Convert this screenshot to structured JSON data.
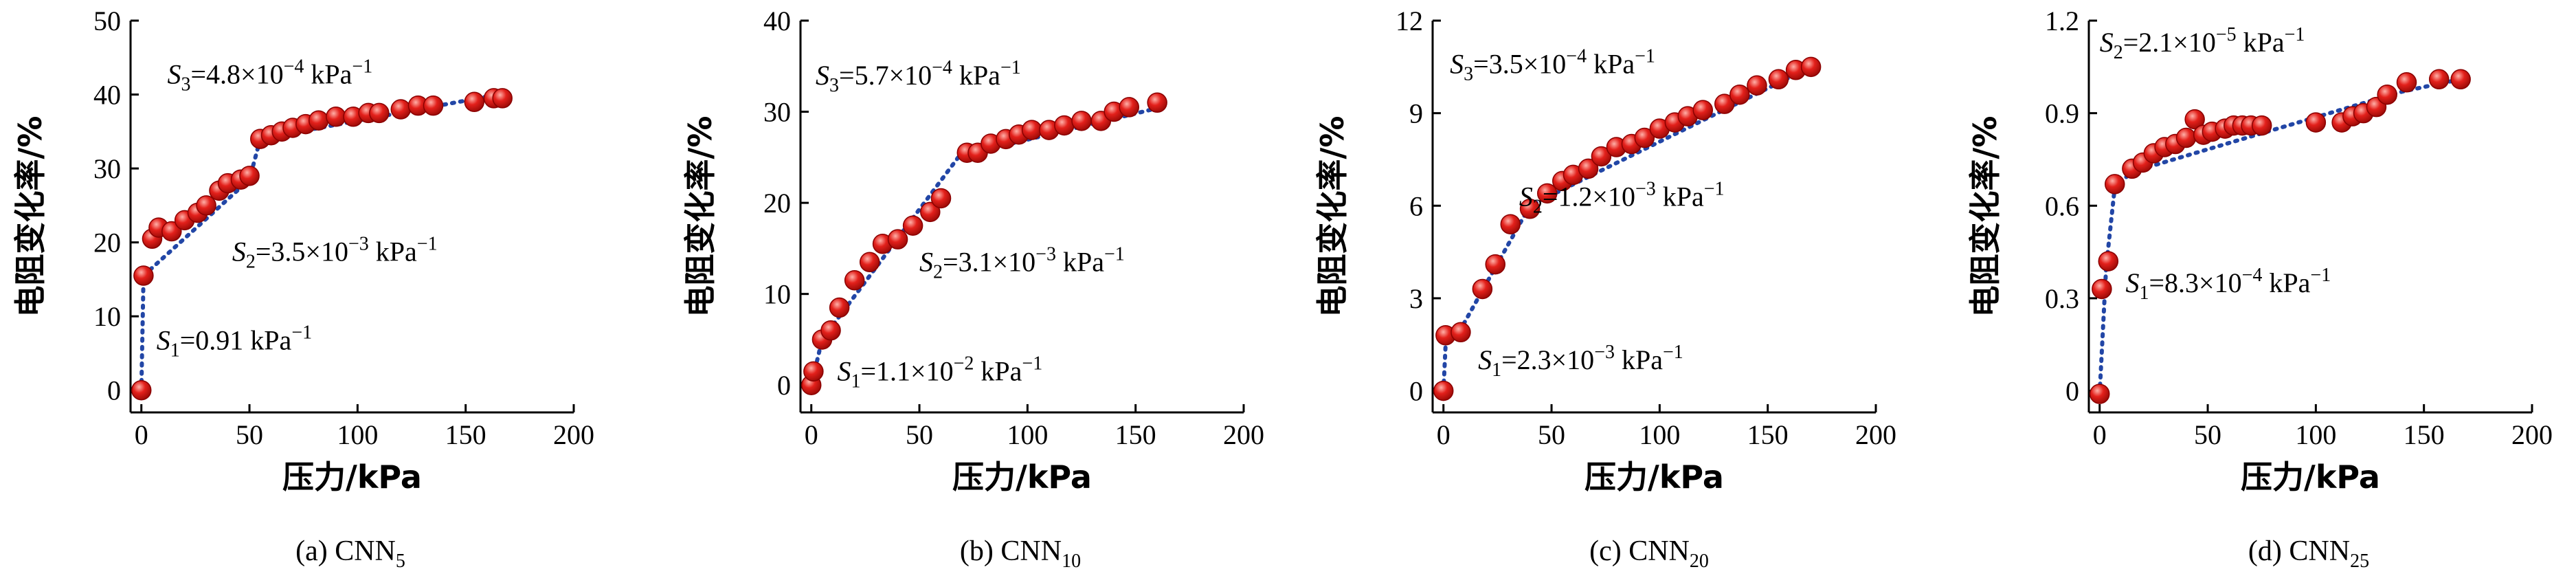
{
  "chart_data": [
    {
      "type": "scatter",
      "panel": "(a)",
      "caption_prefix": "(a) CNN",
      "caption_sub": "5",
      "xlabel": "压力/kPa",
      "ylabel": "电阻变化率/%",
      "xlim": [
        -5,
        200
      ],
      "ylim": [
        -3,
        50
      ],
      "xticks": [
        0,
        50,
        100,
        150,
        200
      ],
      "yticks": [
        0,
        10,
        20,
        30,
        40,
        50
      ],
      "xticklabels": [
        "0",
        "50",
        "100",
        "150",
        "200"
      ],
      "yticklabels": [
        "0",
        "10",
        "20",
        "30",
        "40",
        "50"
      ],
      "series": [
        {
          "name": "data",
          "x": [
            0,
            1,
            5,
            8,
            14,
            20,
            26,
            30,
            36,
            40,
            46,
            50,
            55,
            60,
            65,
            70,
            76,
            82,
            90,
            98,
            105,
            110,
            120,
            128,
            135,
            154,
            163,
            167
          ],
          "y": [
            0,
            15.5,
            20.5,
            22,
            21.5,
            23,
            24,
            25,
            27,
            28,
            28.5,
            29,
            34,
            34.5,
            35,
            35.5,
            36,
            36.5,
            37,
            37,
            37.5,
            37.5,
            38,
            38.5,
            38.5,
            39,
            39.5,
            39.5
          ]
        }
      ],
      "fit": {
        "x": [
          0,
          1,
          50,
          55,
          165
        ],
        "y": [
          0,
          15.5,
          28.5,
          34,
          40
        ]
      },
      "annotations": [
        {
          "sym": "S",
          "sub": "3",
          "text": "=4.8×10",
          "exp": "−4",
          "unit": " kPa",
          "unit_exp": "−1"
        },
        {
          "sym": "S",
          "sub": "2",
          "text": "=3.5×10",
          "exp": "−3",
          "unit": " kPa",
          "unit_exp": "−1"
        },
        {
          "sym": "S",
          "sub": "1",
          "text": "=0.91 kPa",
          "exp": "",
          "unit": "",
          "unit_exp": "−1"
        }
      ]
    },
    {
      "type": "scatter",
      "panel": "(b)",
      "caption_prefix": "(b) CNN",
      "caption_sub": "10",
      "xlabel": "压力/kPa",
      "ylabel": "电阻变化率/%",
      "xlim": [
        -5,
        200
      ],
      "ylim": [
        -3,
        40
      ],
      "xticks": [
        0,
        50,
        100,
        150,
        200
      ],
      "yticks": [
        0,
        10,
        20,
        30,
        40
      ],
      "xticklabels": [
        "0",
        "50",
        "100",
        "150",
        "200"
      ],
      "yticklabels": [
        "0",
        "10",
        "20",
        "30",
        "40"
      ],
      "series": [
        {
          "name": "data",
          "x": [
            0,
            1,
            5,
            9,
            13,
            20,
            27,
            33,
            40,
            47,
            55,
            60,
            72,
            77,
            83,
            90,
            96,
            102,
            110,
            117,
            125,
            134,
            140,
            147,
            160
          ],
          "y": [
            0,
            1.5,
            5,
            6,
            8.5,
            11.5,
            13.5,
            15.5,
            16,
            17.5,
            19,
            20.5,
            25.5,
            25.5,
            26.5,
            27,
            27.5,
            28,
            28,
            28.5,
            29,
            29,
            30,
            30.5,
            31
          ]
        }
      ],
      "fit": {
        "x": [
          0,
          5,
          68,
          75,
          162
        ],
        "y": [
          0,
          5,
          25,
          25.5,
          30.5
        ]
      },
      "annotations": [
        {
          "sym": "S",
          "sub": "3",
          "text": "=5.7×10",
          "exp": "−4",
          "unit": " kPa",
          "unit_exp": "−1"
        },
        {
          "sym": "S",
          "sub": "2",
          "text": "=3.1×10",
          "exp": "−3",
          "unit": " kPa",
          "unit_exp": "−1"
        },
        {
          "sym": "S",
          "sub": "1",
          "text": "=1.1×10",
          "exp": "−2",
          "unit": " kPa",
          "unit_exp": "−1"
        }
      ]
    },
    {
      "type": "scatter",
      "panel": "(c)",
      "caption_prefix": "(c) CNN",
      "caption_sub": "20",
      "xlabel": "压力/kPa",
      "ylabel": "电阻变化率/%",
      "xlim": [
        -5,
        200
      ],
      "ylim": [
        -0.7,
        12
      ],
      "xticks": [
        0,
        50,
        100,
        150,
        200
      ],
      "yticks": [
        0,
        3,
        6,
        9,
        12
      ],
      "xticklabels": [
        "0",
        "50",
        "100",
        "150",
        "200"
      ],
      "yticklabels": [
        "0",
        "3",
        "6",
        "9",
        "12"
      ],
      "series": [
        {
          "name": "data",
          "x": [
            0,
            1,
            8,
            18,
            24,
            31,
            40,
            48,
            55,
            60,
            67,
            73,
            80,
            87,
            93,
            100,
            107,
            113,
            120,
            130,
            137,
            145,
            155,
            163,
            170
          ],
          "y": [
            0,
            1.8,
            1.9,
            3.3,
            4.1,
            5.4,
            5.9,
            6.4,
            6.8,
            7.0,
            7.2,
            7.6,
            7.9,
            8.0,
            8.2,
            8.5,
            8.7,
            8.9,
            9.1,
            9.3,
            9.6,
            9.9,
            10.1,
            10.4,
            10.5
          ]
        }
      ],
      "fit": {
        "x": [
          0,
          1,
          8,
          40,
          170
        ],
        "y": [
          0,
          1.5,
          2.0,
          6.0,
          10.5
        ]
      },
      "annotations": [
        {
          "sym": "S",
          "sub": "3",
          "text": "=3.5×10",
          "exp": "−4",
          "unit": " kPa",
          "unit_exp": "−1"
        },
        {
          "sym": "S",
          "sub": "2",
          "text": "=1.2×10",
          "exp": "−3",
          "unit": " kPa",
          "unit_exp": "−1"
        },
        {
          "sym": "S",
          "sub": "1",
          "text": "=2.3×10",
          "exp": "−3",
          "unit": " kPa",
          "unit_exp": "−1"
        }
      ]
    },
    {
      "type": "scatter",
      "panel": "(d)",
      "caption_prefix": "(d) CNN",
      "caption_sub": "25",
      "xlabel": "压力/kPa",
      "ylabel": "电阻变化率/%",
      "xlim": [
        -5,
        200
      ],
      "ylim": [
        -0.07,
        1.2
      ],
      "xticks": [
        0,
        50,
        100,
        150,
        200
      ],
      "yticks": [
        0,
        0.3,
        0.6,
        0.9,
        1.2
      ],
      "xticklabels": [
        "0",
        "50",
        "100",
        "150",
        "200"
      ],
      "yticklabels": [
        "0",
        "0.3",
        "0.6",
        "0.9",
        "1.2"
      ],
      "series": [
        {
          "name": "data",
          "x": [
            0,
            1,
            4,
            7,
            15,
            20,
            25,
            30,
            35,
            40,
            44,
            48,
            52,
            58,
            62,
            66,
            70,
            75,
            100,
            112,
            117,
            122,
            128,
            133,
            142,
            157,
            167
          ],
          "y": [
            -0.01,
            0.33,
            0.42,
            0.67,
            0.72,
            0.74,
            0.77,
            0.79,
            0.8,
            0.82,
            0.88,
            0.83,
            0.84,
            0.85,
            0.86,
            0.86,
            0.86,
            0.86,
            0.87,
            0.87,
            0.89,
            0.9,
            0.92,
            0.96,
            1.0,
            1.01,
            1.01
          ]
        }
      ],
      "fit": {
        "x": [
          0,
          3,
          7,
          15,
          140,
          167
        ],
        "y": [
          -0.01,
          0.4,
          0.66,
          0.71,
          0.97,
          1.01
        ]
      },
      "annotations": [
        {
          "sym": "S",
          "sub": "2",
          "text": "=2.1×10",
          "exp": "−5",
          "unit": " kPa",
          "unit_exp": "−1"
        },
        {
          "sym": "S",
          "sub": "1",
          "text": "=8.3×10",
          "exp": "−4",
          "unit": " kPa",
          "unit_exp": "−1"
        }
      ]
    }
  ],
  "colors": {
    "marker_fill": "#e3201b",
    "marker_highlight": "#ffb0a8",
    "fit_line": "#2246a6",
    "axes": "#000000"
  }
}
